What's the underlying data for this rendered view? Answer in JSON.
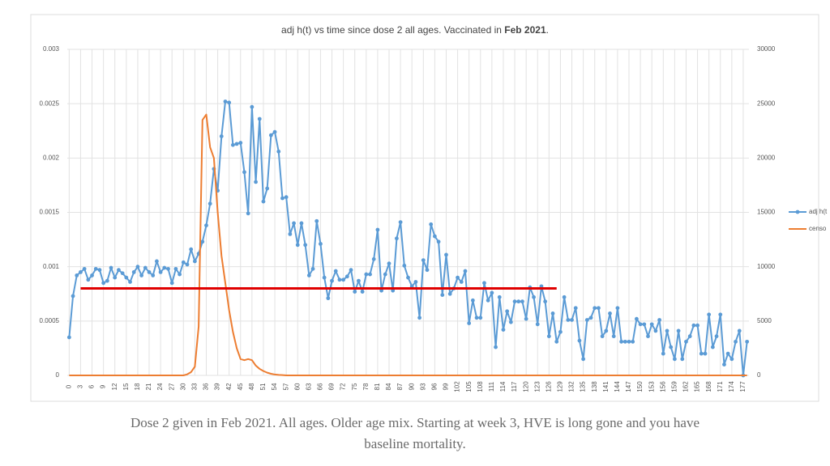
{
  "chart_data": {
    "type": "line",
    "title": [
      "adj h(t) vs time since dose 2 all ages. Vaccinated in ",
      "Feb 2021",
      "."
    ],
    "x": [
      0,
      1,
      2,
      3,
      4,
      5,
      6,
      7,
      8,
      9,
      10,
      11,
      12,
      13,
      14,
      15,
      16,
      17,
      18,
      19,
      20,
      21,
      22,
      23,
      24,
      25,
      26,
      27,
      28,
      29,
      30,
      31,
      32,
      33,
      34,
      35,
      36,
      37,
      38,
      39,
      40,
      41,
      42,
      43,
      44,
      45,
      46,
      47,
      48,
      49,
      50,
      51,
      52,
      53,
      54,
      55,
      56,
      57,
      58,
      59,
      60,
      61,
      62,
      63,
      64,
      65,
      66,
      67,
      68,
      69,
      70,
      71,
      72,
      73,
      74,
      75,
      76,
      77,
      78,
      79,
      80,
      81,
      82,
      83,
      84,
      85,
      86,
      87,
      88,
      89,
      90,
      91,
      92,
      93,
      94,
      95,
      96,
      97,
      98,
      99,
      100,
      101,
      102,
      103,
      104,
      105,
      106,
      107,
      108,
      109,
      110,
      111,
      112,
      113,
      114,
      115,
      116,
      117,
      118,
      119,
      120,
      121,
      122,
      123,
      124,
      125,
      126,
      127,
      128,
      129,
      130,
      131,
      132,
      133,
      134,
      135,
      136,
      137,
      138,
      139,
      140,
      141,
      142,
      143,
      144,
      145,
      146,
      147,
      148,
      149,
      150,
      151,
      152,
      153,
      154,
      155,
      156,
      157,
      158,
      159,
      160,
      161,
      162,
      163,
      164,
      165,
      166,
      167,
      168,
      169,
      170,
      171,
      172,
      173,
      174,
      175,
      176,
      177,
      178
    ],
    "xlim": [
      -0.5,
      178.5
    ],
    "xticks": [
      0,
      3,
      6,
      9,
      12,
      15,
      18,
      21,
      24,
      27,
      30,
      33,
      36,
      39,
      42,
      45,
      48,
      51,
      54,
      57,
      60,
      63,
      66,
      69,
      72,
      75,
      78,
      81,
      84,
      87,
      90,
      93,
      96,
      99,
      102,
      105,
      108,
      111,
      114,
      117,
      120,
      123,
      126,
      129,
      132,
      135,
      138,
      141,
      144,
      147,
      150,
      153,
      156,
      159,
      162,
      165,
      168,
      171,
      174,
      177
    ],
    "ylim": [
      0,
      0.003
    ],
    "yticks": [
      0,
      0.0005,
      0.001,
      0.0015,
      0.002,
      0.0025,
      0.003
    ],
    "y2lim": [
      0,
      30000
    ],
    "y2ticks": [
      0,
      5000,
      10000,
      15000,
      20000,
      25000,
      30000
    ],
    "grid": true,
    "legend": "right",
    "series": [
      {
        "name": "adj h(t",
        "color": "#5b9bd5",
        "markers": true,
        "values": [
          0.00035,
          0.00073,
          0.00092,
          0.00095,
          0.00098,
          0.00088,
          0.00092,
          0.00098,
          0.00097,
          0.00085,
          0.00087,
          0.00099,
          0.0009,
          0.00097,
          0.00094,
          0.0009,
          0.00086,
          0.00095,
          0.001,
          0.00092,
          0.00099,
          0.00095,
          0.00092,
          0.00105,
          0.00095,
          0.00099,
          0.00098,
          0.00085,
          0.00098,
          0.00093,
          0.00104,
          0.00102,
          0.00116,
          0.00105,
          0.00112,
          0.00123,
          0.00138,
          0.00158,
          0.0019,
          0.0017,
          0.0022,
          0.00252,
          0.00251,
          0.00212,
          0.00213,
          0.00214,
          0.00187,
          0.00149,
          0.00247,
          0.00178,
          0.00236,
          0.0016,
          0.00172,
          0.00221,
          0.00224,
          0.00206,
          0.00163,
          0.00164,
          0.0013,
          0.0014,
          0.0012,
          0.0014,
          0.0012,
          0.00092,
          0.00098,
          0.00142,
          0.00121,
          0.0009,
          0.00071,
          0.00087,
          0.00096,
          0.00088,
          0.00088,
          0.00091,
          0.00097,
          0.00077,
          0.00087,
          0.00077,
          0.00093,
          0.00093,
          0.00107,
          0.00134,
          0.00078,
          0.00093,
          0.00103,
          0.00078,
          0.00126,
          0.00141,
          0.00101,
          0.0009,
          0.00082,
          0.00086,
          0.00053,
          0.00106,
          0.00097,
          0.00139,
          0.00128,
          0.00123,
          0.00074,
          0.00111,
          0.00075,
          0.0008,
          0.0009,
          0.00086,
          0.00096,
          0.00048,
          0.00069,
          0.00053,
          0.00053,
          0.00085,
          0.00069,
          0.00076,
          0.00026,
          0.00072,
          0.00042,
          0.00059,
          0.00049,
          0.00068,
          0.00068,
          0.00068,
          0.00052,
          0.00081,
          0.00072,
          0.00047,
          0.00082,
          0.00068,
          0.00036,
          0.00057,
          0.00031,
          0.0004,
          0.00072,
          0.00051,
          0.00051,
          0.00062,
          0.00032,
          0.00015,
          0.00051,
          0.00053,
          0.00062,
          0.00062,
          0.00036,
          0.00041,
          0.00057,
          0.00036,
          0.00062,
          0.00031,
          0.00031,
          0.00031,
          0.00031,
          0.00052,
          0.00047,
          0.00047,
          0.00036,
          0.00047,
          0.00041,
          0.00051,
          0.0002,
          0.00041,
          0.00026,
          0.00015,
          0.00041,
          0.00015,
          0.00031,
          0.00036,
          0.00046,
          0.00046,
          0.0002,
          0.0002,
          0.00056,
          0.00026,
          0.00036,
          0.00056,
          0.0001,
          0.0002,
          0.00015,
          0.00031,
          0.00041,
          0,
          0.00031
        ]
      },
      {
        "name": "censo",
        "color": "#ed7d31",
        "markers": false,
        "axis": "y2",
        "values": [
          0,
          0,
          0,
          0,
          0,
          0,
          0,
          0,
          0,
          0,
          0,
          0,
          0,
          0,
          0,
          0,
          0,
          0,
          0,
          0,
          0,
          0,
          0,
          0,
          0,
          0,
          0,
          0,
          0,
          0,
          0,
          100,
          300,
          800,
          4500,
          23500,
          24000,
          21000,
          20000,
          15000,
          11000,
          8500,
          6000,
          4000,
          2500,
          1500,
          1400,
          1500,
          1400,
          900,
          600,
          400,
          250,
          150,
          80,
          50,
          30,
          0,
          0,
          0,
          0,
          0,
          0,
          0,
          0,
          0,
          0,
          0,
          0,
          0,
          0,
          0,
          0,
          0,
          0,
          0,
          0,
          0,
          0,
          0,
          0,
          0,
          0,
          0,
          0,
          0,
          0,
          0,
          0,
          0,
          0,
          0,
          0,
          0,
          0,
          0,
          0,
          0,
          0,
          0,
          0,
          0,
          0,
          0,
          0,
          0,
          0,
          0,
          0,
          0,
          0,
          0,
          0,
          0,
          0,
          0,
          0,
          0,
          0,
          0,
          0,
          0,
          0,
          0,
          0,
          0,
          0,
          0,
          0,
          0,
          0,
          0,
          0,
          0,
          0,
          0,
          0,
          0,
          0,
          0,
          0,
          0,
          0,
          0,
          0,
          0,
          0,
          0,
          0,
          0,
          0,
          0,
          0,
          0,
          0,
          0,
          0,
          0,
          0,
          0,
          0,
          0,
          0,
          0,
          0,
          0,
          0,
          0,
          0,
          0,
          0,
          0,
          0,
          0,
          0,
          0,
          0,
          0,
          0
        ]
      }
    ],
    "reference_line": {
      "y": 0.0008,
      "x": [
        3,
        128
      ],
      "color": "#e00000"
    },
    "caption": "Dose 2 given in Feb 2021. All ages. Older age mix. Starting at week 3, HVE is long gone and you have baseline mortality."
  }
}
